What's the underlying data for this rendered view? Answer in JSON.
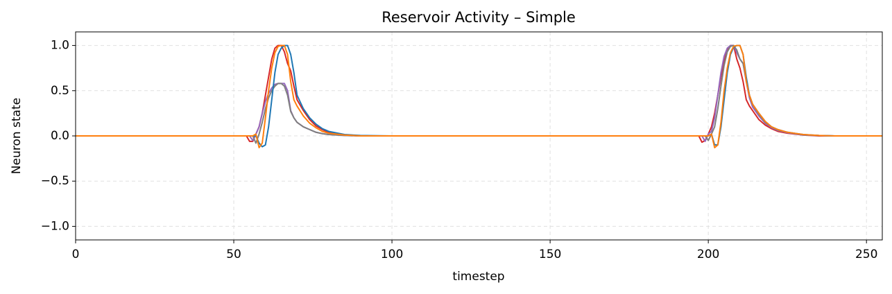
{
  "chart_data": {
    "type": "line",
    "title": "Reservoir Activity – Simple",
    "xlabel": "timestep",
    "ylabel": "Neuron state",
    "x": [
      0,
      50,
      54,
      55,
      56,
      57,
      58,
      59,
      60,
      61,
      62,
      63,
      64,
      65,
      66,
      67,
      68,
      69,
      70,
      72,
      74,
      76,
      78,
      80,
      85,
      90,
      100,
      150,
      196,
      197,
      198,
      199,
      200,
      201,
      202,
      203,
      204,
      205,
      206,
      207,
      208,
      209,
      210,
      211,
      212,
      213,
      214,
      216,
      218,
      220,
      222,
      225,
      230,
      235,
      240,
      255
    ],
    "series": [
      {
        "color": "#d62728",
        "values": [
          0,
          0,
          0,
          -0.06,
          -0.06,
          0.02,
          0.1,
          0.25,
          0.45,
          0.65,
          0.85,
          0.97,
          1.0,
          1.0,
          0.93,
          0.8,
          0.72,
          0.55,
          0.4,
          0.28,
          0.18,
          0.11,
          0.07,
          0.04,
          0.01,
          0,
          0,
          0,
          0,
          0,
          -0.07,
          -0.05,
          0.02,
          0.1,
          0.25,
          0.45,
          0.65,
          0.82,
          0.95,
          1.0,
          1.0,
          0.85,
          0.75,
          0.6,
          0.4,
          0.33,
          0.28,
          0.18,
          0.12,
          0.08,
          0.05,
          0.03,
          0.01,
          0,
          0,
          0
        ]
      },
      {
        "color": "#9467bd",
        "values": [
          0,
          0,
          0,
          0,
          -0.05,
          0.02,
          0.1,
          0.25,
          0.38,
          0.47,
          0.53,
          0.57,
          0.58,
          0.58,
          0.58,
          0.5,
          0.28,
          0.2,
          0.15,
          0.1,
          0.07,
          0.04,
          0.025,
          0.015,
          0.005,
          0,
          0,
          0,
          0,
          0,
          0,
          -0.06,
          0.02,
          0.05,
          0.2,
          0.45,
          0.7,
          0.88,
          0.97,
          1.0,
          1.0,
          0.92,
          0.85,
          0.8,
          0.6,
          0.42,
          0.32,
          0.22,
          0.14,
          0.09,
          0.06,
          0.035,
          0.01,
          0.004,
          0,
          0
        ]
      },
      {
        "color": "#7f7f7f",
        "values": [
          0,
          0,
          0,
          0,
          0,
          -0.08,
          0.02,
          0.15,
          0.3,
          0.42,
          0.5,
          0.55,
          0.58,
          0.58,
          0.55,
          0.45,
          0.27,
          0.2,
          0.15,
          0.1,
          0.07,
          0.04,
          0.025,
          0.015,
          0.005,
          0,
          0,
          0,
          0,
          0,
          0,
          0,
          -0.05,
          0.02,
          0.1,
          0.3,
          0.55,
          0.78,
          0.93,
          0.99,
          1.0,
          0.95,
          0.85,
          0.8,
          0.62,
          0.45,
          0.35,
          0.24,
          0.15,
          0.1,
          0.065,
          0.04,
          0.012,
          0.004,
          0,
          0
        ]
      },
      {
        "color": "#1f77b4",
        "values": [
          0,
          0,
          0,
          0,
          0,
          0,
          -0.08,
          -0.12,
          -0.1,
          0.1,
          0.4,
          0.7,
          0.9,
          0.97,
          1.0,
          1.0,
          0.9,
          0.7,
          0.45,
          0.3,
          0.2,
          0.13,
          0.08,
          0.05,
          0.015,
          0.005,
          0,
          0,
          0,
          0,
          0,
          0,
          0,
          0.02,
          -0.1,
          -0.1,
          0.1,
          0.4,
          0.7,
          0.9,
          0.98,
          1.0,
          1.0,
          0.9,
          0.65,
          0.45,
          0.35,
          0.25,
          0.16,
          0.1,
          0.07,
          0.04,
          0.015,
          0.005,
          0,
          0
        ]
      },
      {
        "color": "#ff7f0e",
        "values": [
          0,
          0,
          0,
          0,
          0,
          0.02,
          -0.13,
          -0.08,
          0.2,
          0.5,
          0.75,
          0.92,
          0.99,
          1.0,
          1.0,
          0.9,
          0.6,
          0.4,
          0.33,
          0.22,
          0.14,
          0.09,
          0.05,
          0.03,
          0.01,
          0,
          0,
          0,
          0,
          0,
          0,
          0,
          0,
          0.02,
          -0.13,
          -0.1,
          0.15,
          0.5,
          0.75,
          0.92,
          0.99,
          1.0,
          1.0,
          0.9,
          0.6,
          0.45,
          0.35,
          0.25,
          0.16,
          0.1,
          0.07,
          0.04,
          0.015,
          0.005,
          0,
          0
        ]
      }
    ],
    "xlim": [
      0,
      255
    ],
    "ylim": [
      -1.15,
      1.15
    ],
    "xticks": [
      0,
      50,
      100,
      150,
      200,
      250
    ],
    "yticks": [
      {
        "value": -1,
        "label": "−1.0"
      },
      {
        "value": -0.5,
        "label": "−0.5"
      },
      {
        "value": 0,
        "label": "0.0"
      },
      {
        "value": 0.5,
        "label": "0.5"
      },
      {
        "value": 1,
        "label": "1.0"
      }
    ],
    "grid": true
  }
}
